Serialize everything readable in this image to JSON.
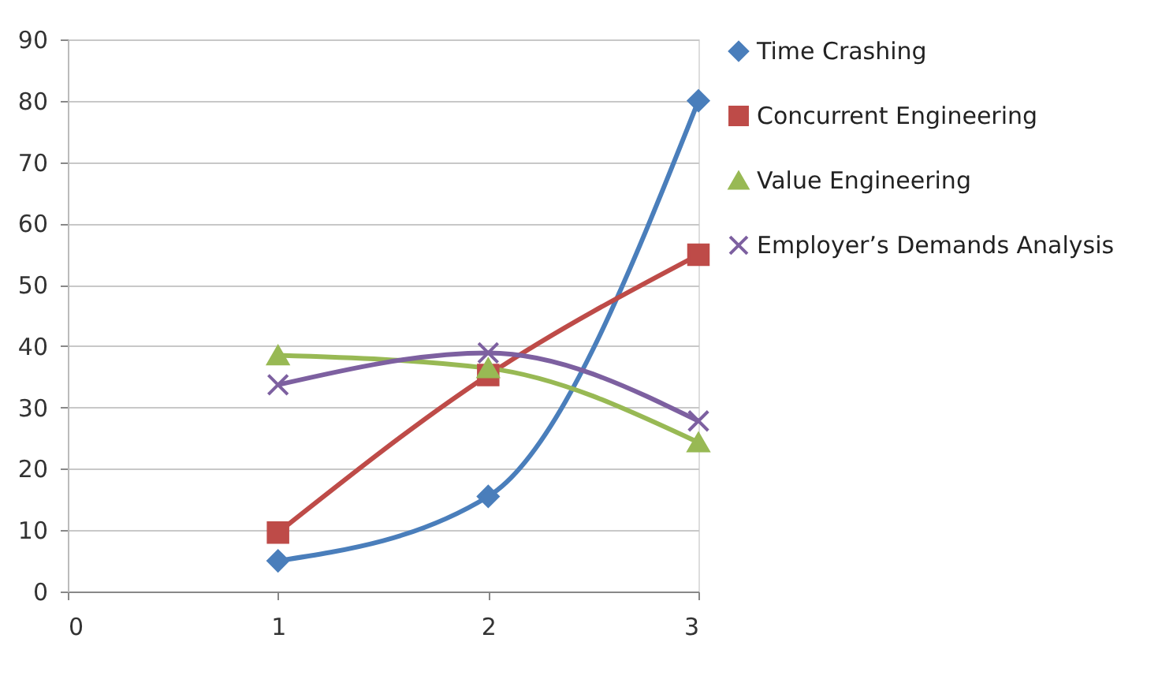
{
  "chart_data": {
    "type": "line",
    "x": [
      1,
      2,
      3
    ],
    "xlim": [
      0,
      3
    ],
    "xticks": [
      0,
      1,
      2,
      3
    ],
    "ylim": [
      0,
      90
    ],
    "yticks": [
      0,
      10,
      20,
      30,
      40,
      50,
      60,
      70,
      80,
      90
    ],
    "grid": "y",
    "legend": "right",
    "line_style": "solid",
    "series": [
      {
        "name": "Time Crashing",
        "color": "#4a7ebb",
        "marker": "diamond",
        "values": [
          5.0,
          15.5,
          80
        ]
      },
      {
        "name": "Concurrent Engineering",
        "color": "#be4b48",
        "marker": "square",
        "values": [
          9.6,
          35.3,
          54.9
        ]
      },
      {
        "name": "Value Engineering",
        "color": "#98b954",
        "marker": "triangle",
        "values": [
          38.5,
          36.4,
          24.3
        ]
      },
      {
        "name": "Employer’s Demands Analysis",
        "color": "#7d60a0",
        "marker": "cross",
        "values": [
          33.7,
          38.9,
          27.8
        ]
      }
    ]
  }
}
